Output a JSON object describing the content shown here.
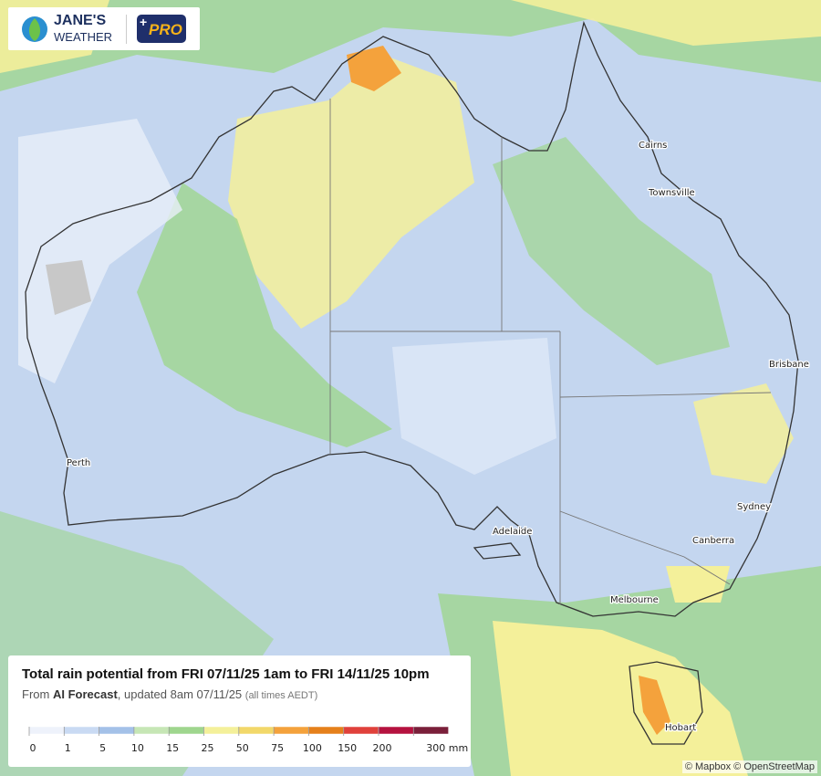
{
  "header": {
    "brand_line1": "JANE'S",
    "brand_line2": "WEATHER",
    "badge": "PRO"
  },
  "map": {
    "places": [
      {
        "label": "Cairns"
      },
      {
        "label": "Townsville"
      },
      {
        "label": "Brisbane"
      },
      {
        "label": "Sydney"
      },
      {
        "label": "Canberra"
      },
      {
        "label": "Melbourne"
      },
      {
        "label": "Hobart"
      },
      {
        "label": "Adelaide"
      },
      {
        "label": "Perth"
      }
    ],
    "attribution": "© Mapbox © OpenStreetMap"
  },
  "legend": {
    "title": "Total rain potential from FRI 07/11/25 1am to FRI 14/11/25 10pm",
    "subtitle": {
      "prefix": "From",
      "source": "AI Forecast",
      "updated": ", updated 8am 07/11/25",
      "note": "(all times AEDT)"
    },
    "ticks": [
      "0",
      "1",
      "5",
      "10",
      "15",
      "25",
      "50",
      "75",
      "100",
      "150",
      "200",
      "300 mm"
    ],
    "colors": [
      "#eef2fb",
      "#c9daf3",
      "#a4c1e8",
      "#c6e6b5",
      "#9fd68e",
      "#f4f09a",
      "#f2d86a",
      "#f4a23c",
      "#e5801b",
      "#e0413b",
      "#b5123f",
      "#7a1f3a"
    ]
  }
}
